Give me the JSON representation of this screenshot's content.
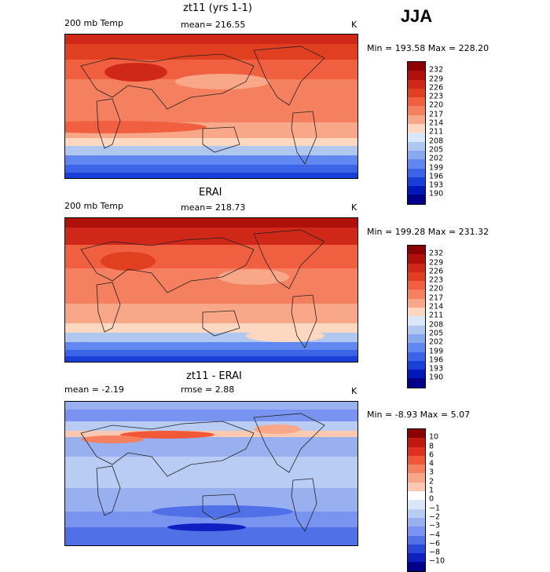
{
  "season": "JJA",
  "panels": [
    {
      "title": "zt11 (yrs 1-1)",
      "left_label": "200 mb Temp",
      "center_label": "mean= 216.55",
      "units": "K",
      "minmax": "Min = 193.58 Max = 228.20",
      "colorbar_labels": [
        "232",
        "229",
        "226",
        "223",
        "220",
        "217",
        "214",
        "211",
        "208",
        "205",
        "202",
        "199",
        "196",
        "193",
        "190"
      ]
    },
    {
      "title": "ERAI",
      "left_label": "200 mb Temp",
      "center_label": "mean= 218.73",
      "units": "K",
      "minmax": "Min = 199.28 Max = 231.32",
      "colorbar_labels": [
        "232",
        "229",
        "226",
        "223",
        "220",
        "217",
        "214",
        "211",
        "208",
        "205",
        "202",
        "199",
        "196",
        "193",
        "190"
      ]
    },
    {
      "title": "zt11 - ERAI",
      "left_label": "mean =   -2.19",
      "center_label": "rmse =    2.88",
      "units": "K",
      "minmax": "Min =  -8.93 Max =    5.07",
      "colorbar_labels": [
        "10",
        "8",
        "6",
        "4",
        "3",
        "2",
        "1",
        "0",
        "−1",
        "−2",
        "−3",
        "−4",
        "−6",
        "−8",
        "−10"
      ]
    }
  ],
  "colors": {
    "temp_scale": [
      "#8b0000",
      "#b0100a",
      "#d02818",
      "#e04020",
      "#f06040",
      "#f48060",
      "#f8a888",
      "#fcd8c0",
      "#d8e8f8",
      "#b0c8f0",
      "#88a8f0",
      "#6088f0",
      "#3c64e8",
      "#1840d8",
      "#0018b8",
      "#00008b"
    ],
    "diff_scale": [
      "#8b0000",
      "#c0180c",
      "#e03020",
      "#f05838",
      "#f48060",
      "#f8a888",
      "#fcc8b0",
      "#ffffff",
      "#d8e8f8",
      "#b8ccf4",
      "#98b0f0",
      "#7894f0",
      "#5070e8",
      "#2848d8",
      "#1020c0",
      "#00008b"
    ]
  }
}
